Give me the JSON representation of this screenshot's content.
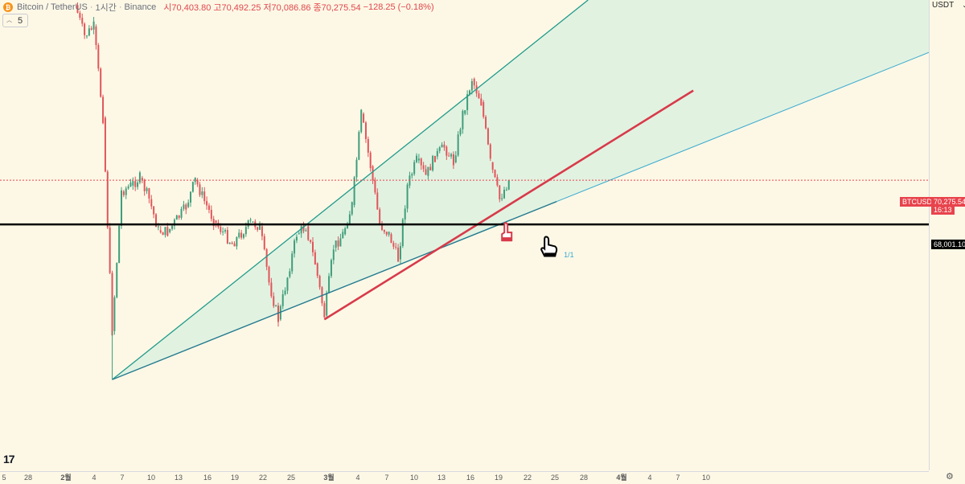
{
  "legend": {
    "symbol": "Bitcoin / TetherUS",
    "interval": "1시간",
    "exchange": "Binance",
    "open": "시70,403.80",
    "high": "고70,492.25",
    "low": "저70,086.86",
    "close": "종70,275.54",
    "change": "−128.25 (−0.18%)",
    "coin_icon": "bitcoin-icon"
  },
  "indicator_toggle": {
    "label": "5",
    "icon": "chevron-up-icon"
  },
  "currency": {
    "label": "USDT",
    "icon": "chevron-down-icon"
  },
  "price_labels": {
    "symbol_tag": "BTCUSDT",
    "last_price": "70,275.54",
    "countdown": "16:13",
    "hline_price": "68,001.10"
  },
  "colors": {
    "background": "#fdf8e6",
    "channel_fill": "#e2f2e1",
    "channel_line": "#1f9a8a",
    "trend_red": "#d83a4a",
    "candle_red": "#e0555a",
    "candle_green": "#3f9d7a",
    "hline": "#000000",
    "last_price": "#e8434c"
  },
  "icons": [
    "bitcoin-icon",
    "hand-pointer-icon",
    "settings-icon",
    "tradingview-logo"
  ],
  "chart_data": {
    "type": "candlestick",
    "symbol": "BTCUSDT",
    "timeframe": "1시간",
    "ylim": [
      56300,
      80100
    ],
    "y_ticks": [
      57000,
      58000,
      59000,
      60000,
      61000,
      62000,
      63000,
      64000,
      65000,
      66000,
      67000,
      68000,
      69000,
      70000,
      71000,
      72000,
      73000,
      74000,
      75000,
      76000,
      77000,
      78000,
      79000
    ],
    "x_ticks": [
      "5",
      "28",
      "2월",
      "4",
      "7",
      "10",
      "13",
      "16",
      "19",
      "22",
      "25",
      "3월",
      "4",
      "7",
      "10",
      "13",
      "16",
      "19",
      "22",
      "25",
      "28",
      "4월",
      "4",
      "7",
      "10"
    ],
    "price_path": [
      {
        "x": "2월 2",
        "price": 79300
      },
      {
        "x": "2월 3",
        "price": 77700
      },
      {
        "x": "2월 4",
        "price": 78200
      },
      {
        "x": "2월 5",
        "price": 73500
      },
      {
        "x": "2월 6",
        "price": 62500
      },
      {
        "x": "2월 7",
        "price": 69700
      },
      {
        "x": "2월 8",
        "price": 70000
      },
      {
        "x": "2월 9",
        "price": 70400
      },
      {
        "x": "2월 10",
        "price": 69300
      },
      {
        "x": "2월 11",
        "price": 67700
      },
      {
        "x": "2월 12",
        "price": 67600
      },
      {
        "x": "2월 14",
        "price": 68900
      },
      {
        "x": "2월 15",
        "price": 70300
      },
      {
        "x": "2월 16",
        "price": 69200
      },
      {
        "x": "2월 17",
        "price": 68200
      },
      {
        "x": "2월 19",
        "price": 67000
      },
      {
        "x": "2월 21",
        "price": 68100
      },
      {
        "x": "2월 22",
        "price": 67900
      },
      {
        "x": "2월 23",
        "price": 65000
      },
      {
        "x": "2월 24",
        "price": 63100
      },
      {
        "x": "2월 25",
        "price": 65300
      },
      {
        "x": "2월 26",
        "price": 67500
      },
      {
        "x": "2월 27",
        "price": 67900
      },
      {
        "x": "2월 28",
        "price": 66000
      },
      {
        "x": "3월 1",
        "price": 63300
      },
      {
        "x": "3월 2",
        "price": 66800
      },
      {
        "x": "3월 3",
        "price": 67500
      },
      {
        "x": "3월 4",
        "price": 69000
      },
      {
        "x": "3월 5",
        "price": 73700
      },
      {
        "x": "3월 6",
        "price": 71000
      },
      {
        "x": "3월 7",
        "price": 68000
      },
      {
        "x": "3월 8",
        "price": 67500
      },
      {
        "x": "3월 9",
        "price": 66200
      },
      {
        "x": "3월 10",
        "price": 70000
      },
      {
        "x": "3월 11",
        "price": 71300
      },
      {
        "x": "3월 12",
        "price": 70500
      },
      {
        "x": "3월 13",
        "price": 71500
      },
      {
        "x": "3월 14",
        "price": 72000
      },
      {
        "x": "3월 15",
        "price": 71200
      },
      {
        "x": "3월 16",
        "price": 73700
      },
      {
        "x": "3월 17",
        "price": 75500
      },
      {
        "x": "3월 18",
        "price": 74300
      },
      {
        "x": "3월 19",
        "price": 71200
      },
      {
        "x": "3월 20",
        "price": 69300
      },
      {
        "x": "3월 21",
        "price": 70275.54
      }
    ],
    "last_price": 70275.54,
    "horizontal_line": 68001.1,
    "drawings": {
      "channel_upper": {
        "from": {
          "x": "2월 6",
          "price": 60000
        },
        "to": {
          "x": "3월 31",
          "price": 80100
        }
      },
      "channel_lower": {
        "from": {
          "x": "2월 6",
          "price": 60000
        },
        "to": {
          "x": "4월 10",
          "price": 72000
        }
      },
      "trend_red": {
        "from": {
          "x": "3월 1",
          "price": 63100
        },
        "to": {
          "x": "4월 10",
          "price": 74900
        }
      }
    },
    "xlabel": "",
    "ylabel": "",
    "grid": false
  }
}
